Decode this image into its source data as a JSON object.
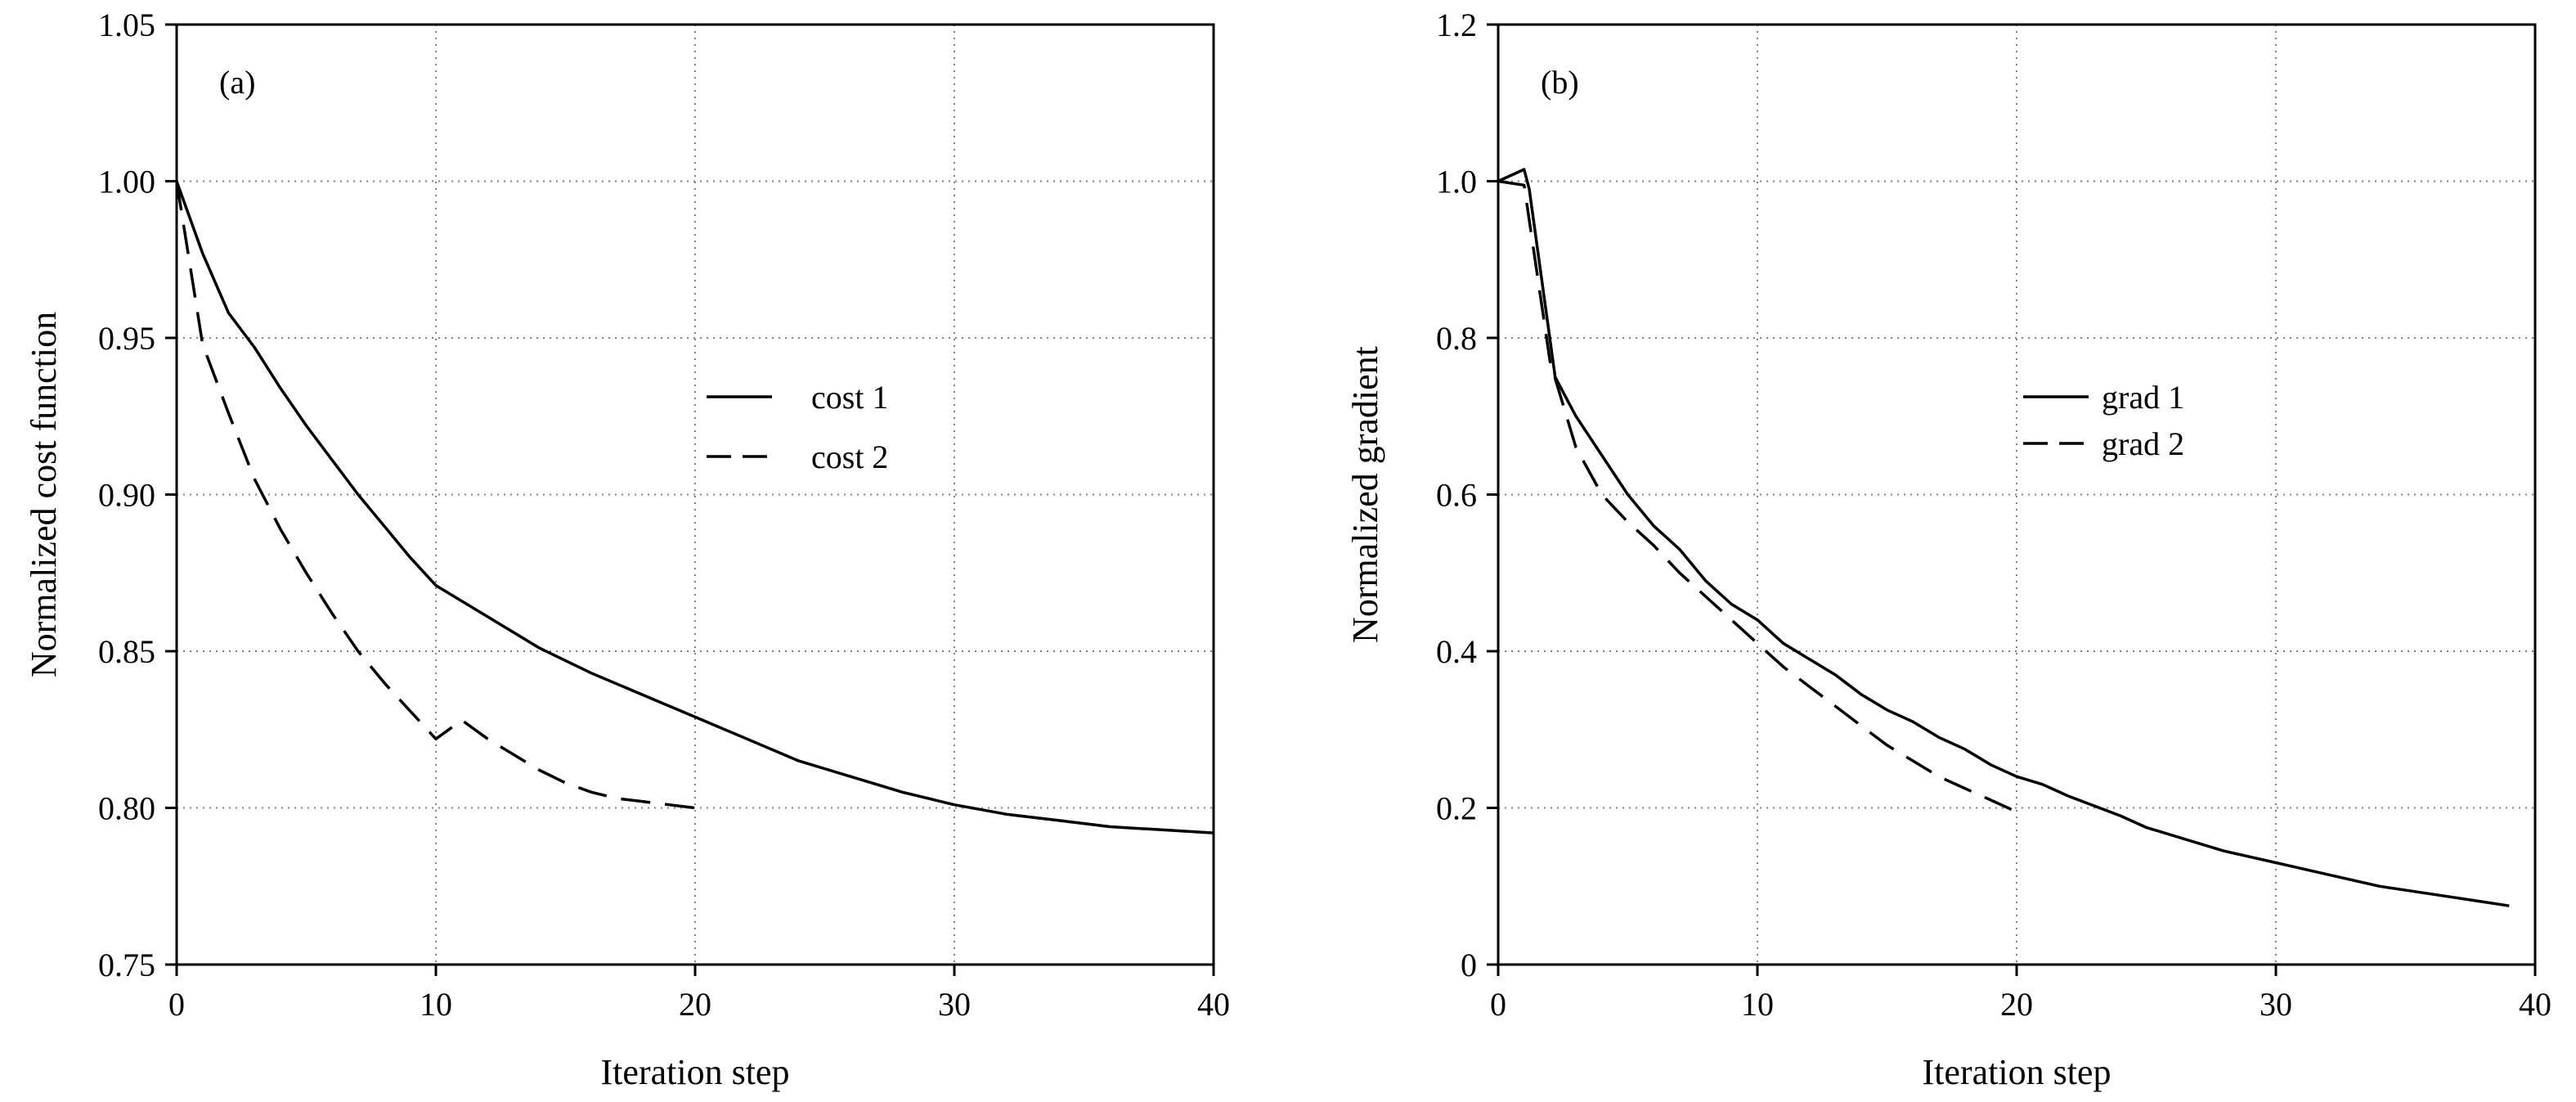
{
  "chart_data": [
    {
      "type": "line",
      "panel_label": "(a)",
      "xlabel": "Iteration step",
      "ylabel": "Normalized cost function",
      "xlim": [
        0,
        40
      ],
      "ylim": [
        0.75,
        1.05
      ],
      "xticks": [
        0,
        10,
        20,
        30,
        40
      ],
      "xtick_labels": [
        "0",
        "10",
        "20",
        "30",
        "40"
      ],
      "yticks": [
        0.75,
        0.8,
        0.85,
        0.9,
        0.95,
        1.0,
        1.05
      ],
      "ytick_labels": [
        "0.75",
        "0.80",
        "0.85",
        "0.90",
        "0.95",
        "1.00",
        "1.05"
      ],
      "grid": true,
      "legend": "center-right",
      "series": [
        {
          "name": "cost 1",
          "style": "solid",
          "x": [
            0,
            1,
            2,
            3,
            4,
            5,
            6,
            7,
            8,
            9,
            10,
            12,
            14,
            16,
            18,
            20,
            22,
            24,
            26,
            28,
            30,
            32,
            34,
            36,
            38,
            40
          ],
          "y": [
            1.0,
            0.977,
            0.958,
            0.947,
            0.934,
            0.922,
            0.911,
            0.9,
            0.89,
            0.88,
            0.871,
            0.861,
            0.851,
            0.843,
            0.836,
            0.829,
            0.822,
            0.815,
            0.81,
            0.805,
            0.801,
            0.798,
            0.796,
            0.794,
            0.793,
            0.792
          ]
        },
        {
          "name": "cost 2",
          "style": "dashed",
          "x": [
            0,
            1,
            2,
            3,
            4,
            5,
            6,
            7,
            8,
            9,
            10,
            11,
            12,
            13,
            14,
            15,
            16,
            17,
            18,
            19,
            20
          ],
          "y": [
            1.0,
            0.948,
            0.926,
            0.905,
            0.889,
            0.875,
            0.862,
            0.85,
            0.84,
            0.831,
            0.822,
            0.828,
            0.822,
            0.817,
            0.812,
            0.808,
            0.805,
            0.803,
            0.802,
            0.801,
            0.8
          ]
        }
      ]
    },
    {
      "type": "line",
      "panel_label": "(b)",
      "xlabel": "Iteration step",
      "ylabel": "Normalized gradient",
      "xlim": [
        0,
        40
      ],
      "ylim": [
        0,
        1.2
      ],
      "xticks": [
        0,
        10,
        20,
        30,
        40
      ],
      "xtick_labels": [
        "0",
        "10",
        "20",
        "30",
        "40"
      ],
      "yticks": [
        0,
        0.2,
        0.4,
        0.6,
        0.8,
        1.0,
        1.2
      ],
      "ytick_labels": [
        "0",
        "0.2",
        "0.4",
        "0.6",
        "0.8",
        "1.0",
        "1.2"
      ],
      "grid": true,
      "legend": "center-right",
      "series": [
        {
          "name": "grad 1",
          "style": "solid",
          "x": [
            0,
            1,
            1.2,
            2.2,
            3,
            4,
            5,
            6,
            7,
            8,
            9,
            10,
            11,
            12,
            13,
            14,
            15,
            16,
            17,
            18,
            19,
            20,
            21,
            22,
            24,
            25,
            26,
            28,
            30,
            32,
            34,
            36,
            38,
            39
          ],
          "y": [
            1.0,
            1.015,
            0.99,
            0.75,
            0.7,
            0.65,
            0.6,
            0.56,
            0.53,
            0.49,
            0.46,
            0.44,
            0.41,
            0.39,
            0.37,
            0.345,
            0.325,
            0.31,
            0.29,
            0.275,
            0.255,
            0.24,
            0.23,
            0.215,
            0.19,
            0.175,
            0.165,
            0.145,
            0.13,
            0.115,
            0.1,
            0.09,
            0.08,
            0.075
          ]
        },
        {
          "name": "grad 2",
          "style": "dashed",
          "x": [
            0,
            1,
            2,
            3,
            4,
            5,
            6,
            7,
            8,
            9,
            10,
            11,
            12,
            13,
            14,
            15,
            16,
            17,
            18,
            19,
            20
          ],
          "y": [
            1.0,
            0.995,
            0.77,
            0.66,
            0.6,
            0.565,
            0.535,
            0.5,
            0.47,
            0.44,
            0.41,
            0.38,
            0.355,
            0.33,
            0.305,
            0.28,
            0.26,
            0.24,
            0.225,
            0.21,
            0.195
          ]
        }
      ]
    }
  ]
}
